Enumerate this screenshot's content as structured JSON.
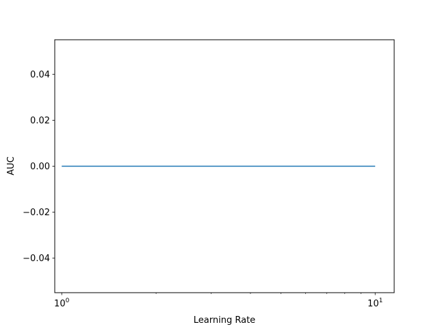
{
  "chart_data": {
    "type": "line",
    "title": "",
    "xlabel": "Learning Rate",
    "ylabel": "AUC",
    "xscale": "log",
    "xlim": [
      0.95,
      11.5
    ],
    "ylim": [
      -0.055,
      0.055
    ],
    "x_major_ticks": [
      {
        "value": 1,
        "base": "10",
        "exp": "0"
      },
      {
        "value": 10,
        "base": "10",
        "exp": "1"
      }
    ],
    "x_minor_ticks": [
      2,
      3,
      4,
      5,
      6,
      7,
      8,
      9
    ],
    "y_ticks": [
      {
        "value": -0.04,
        "label": "−0.04"
      },
      {
        "value": -0.02,
        "label": "−0.02"
      },
      {
        "value": 0.0,
        "label": "0.00"
      },
      {
        "value": 0.02,
        "label": "0.02"
      },
      {
        "value": 0.04,
        "label": "0.04"
      }
    ],
    "grid": false,
    "series": [
      {
        "color": "#1f77b4",
        "x": [
          1,
          10
        ],
        "y": [
          0.0,
          0.0
        ]
      }
    ]
  }
}
